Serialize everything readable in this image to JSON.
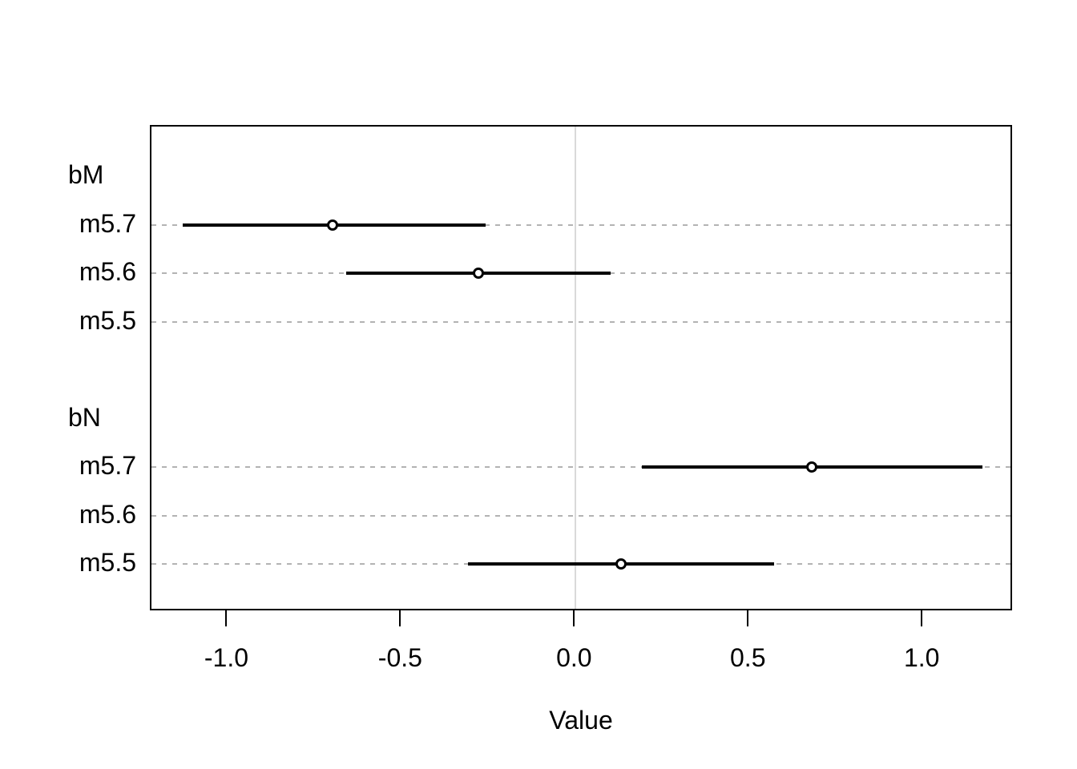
{
  "chart_data": {
    "type": "scatter",
    "variant": "coefficient-interval-plot",
    "title": "",
    "xlabel": "Value",
    "ylabel": "",
    "xlim": [
      -1.22,
      1.26
    ],
    "x_ticks": [
      -1.0,
      -0.5,
      0.0,
      0.5,
      1.0
    ],
    "x_tick_labels": [
      "-1.0",
      "-0.5",
      "0.0",
      "0.5",
      "1.0"
    ],
    "zero_line_x": 0.0,
    "grid": "horizontal dashed gridlines on coefficient rows",
    "legend_position": "none",
    "rows": [
      {
        "label": "bM",
        "kind": "group",
        "estimate": null,
        "ci_low": null,
        "ci_high": null,
        "gridline": false
      },
      {
        "label": "m5.7",
        "kind": "model",
        "estimate": -0.7,
        "ci_low": -1.13,
        "ci_high": -0.26,
        "gridline": true
      },
      {
        "label": "m5.6",
        "kind": "model",
        "estimate": -0.28,
        "ci_low": -0.66,
        "ci_high": 0.1,
        "gridline": true
      },
      {
        "label": "m5.5",
        "kind": "model",
        "estimate": null,
        "ci_low": null,
        "ci_high": null,
        "gridline": true
      },
      {
        "label": "",
        "kind": "spacer",
        "estimate": null,
        "ci_low": null,
        "ci_high": null,
        "gridline": false
      },
      {
        "label": "bN",
        "kind": "group",
        "estimate": null,
        "ci_low": null,
        "ci_high": null,
        "gridline": false
      },
      {
        "label": "m5.7",
        "kind": "model",
        "estimate": 0.68,
        "ci_low": 0.19,
        "ci_high": 1.17,
        "gridline": true
      },
      {
        "label": "m5.6",
        "kind": "model",
        "estimate": null,
        "ci_low": null,
        "ci_high": null,
        "gridline": true
      },
      {
        "label": "m5.5",
        "kind": "model",
        "estimate": 0.13,
        "ci_low": -0.31,
        "ci_high": 0.57,
        "gridline": true
      }
    ],
    "colors": {
      "interval_line": "#000000",
      "point_stroke": "#000000",
      "point_fill": "#ffffff",
      "gridline": "#b3b3b3",
      "zero_line": "#d9d9d9",
      "axis": "#000000",
      "text": "#000000",
      "background": "#ffffff"
    }
  }
}
